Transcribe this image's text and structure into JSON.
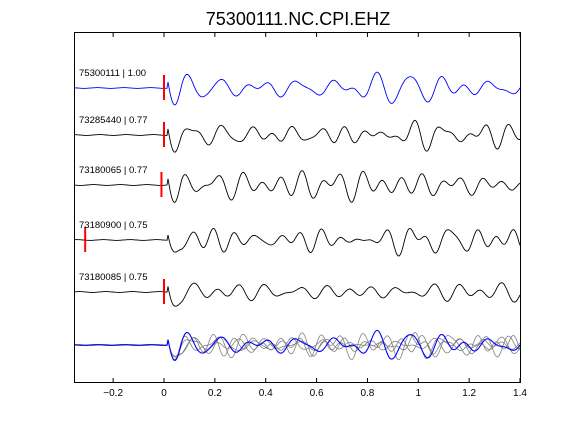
{
  "chart_data": {
    "type": "line",
    "title": "75300111.NC.CPI.EHZ",
    "xlabel": "",
    "ylabel": "",
    "xlim": [
      -0.35,
      1.4
    ],
    "xticks": [
      -0.2,
      0,
      0.2,
      0.4,
      0.6,
      0.8,
      1,
      1.2,
      1.4
    ],
    "xtick_labels": [
      "−0.2",
      "0",
      "0.2",
      "0.4",
      "0.6",
      "0.8",
      "1",
      "1.2",
      "1.4"
    ],
    "grid": false,
    "traces": [
      {
        "label": "75300111 | 1.00",
        "color": "#0000ff",
        "pick_time": 0.0
      },
      {
        "label": "73285440 | 0.77",
        "color": "#000000",
        "pick_time": 0.0
      },
      {
        "label": "73180065 | 0.77",
        "color": "#000000",
        "pick_time": -0.01
      },
      {
        "label": "73180900 | 0.75",
        "color": "#000000",
        "pick_time": -0.31
      },
      {
        "label": "73180085 | 0.75",
        "color": "#000000",
        "pick_time": 0.0
      }
    ],
    "overlay": {
      "reference_color": "#0000ff",
      "others_color": "#808080"
    },
    "pick_color": "#ff0000"
  }
}
